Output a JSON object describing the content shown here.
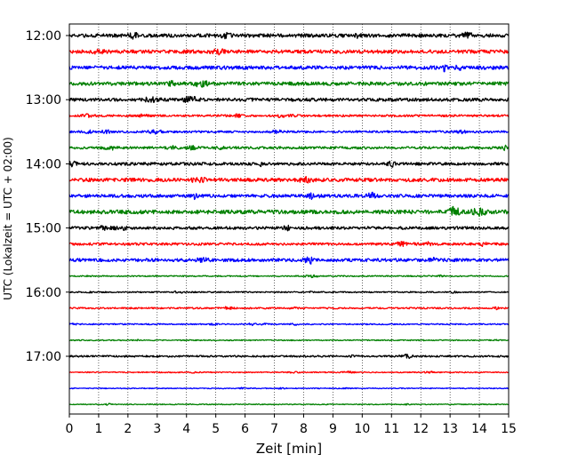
{
  "chart_data": {
    "type": "seismogram",
    "xlabel": "Zeit  [min]",
    "ylabel": "UTC (Lokalzeit = UTC + 02:00)",
    "xlim": [
      0,
      15
    ],
    "x_ticks": [
      0,
      1,
      2,
      3,
      4,
      5,
      6,
      7,
      8,
      9,
      10,
      11,
      12,
      13,
      14,
      15
    ],
    "y_tick_labels": [
      "12:00",
      "13:00",
      "14:00",
      "15:00",
      "16:00",
      "17:00"
    ],
    "trace_interval_minutes": 15,
    "trace_colors": [
      "#000000",
      "#ff0000",
      "#0000ff",
      "#008000"
    ],
    "grid": "vertical dotted lines at each minute",
    "traces": [
      {
        "start": "12:00",
        "color": "#000000",
        "amplitude": 1.0
      },
      {
        "start": "12:15",
        "color": "#ff0000",
        "amplitude": 1.0
      },
      {
        "start": "12:30",
        "color": "#0000ff",
        "amplitude": 1.0
      },
      {
        "start": "12:45",
        "color": "#008000",
        "amplitude": 1.0
      },
      {
        "start": "13:00",
        "color": "#000000",
        "amplitude": 0.9
      },
      {
        "start": "13:15",
        "color": "#ff0000",
        "amplitude": 0.6
      },
      {
        "start": "13:30",
        "color": "#0000ff",
        "amplitude": 0.6
      },
      {
        "start": "13:45",
        "color": "#008000",
        "amplitude": 0.7
      },
      {
        "start": "14:00",
        "color": "#000000",
        "amplitude": 0.8
      },
      {
        "start": "14:15",
        "color": "#ff0000",
        "amplitude": 1.0
      },
      {
        "start": "14:30",
        "color": "#0000ff",
        "amplitude": 0.9
      },
      {
        "start": "14:45",
        "color": "#008000",
        "amplitude": 1.1
      },
      {
        "start": "15:00",
        "color": "#000000",
        "amplitude": 0.8
      },
      {
        "start": "15:15",
        "color": "#ff0000",
        "amplitude": 0.7
      },
      {
        "start": "15:30",
        "color": "#0000ff",
        "amplitude": 0.9
      },
      {
        "start": "15:45",
        "color": "#008000",
        "amplitude": 0.35
      },
      {
        "start": "16:00",
        "color": "#000000",
        "amplitude": 0.35
      },
      {
        "start": "16:15",
        "color": "#ff0000",
        "amplitude": 0.45
      },
      {
        "start": "16:30",
        "color": "#0000ff",
        "amplitude": 0.35
      },
      {
        "start": "16:45",
        "color": "#008000",
        "amplitude": 0.3
      },
      {
        "start": "17:00",
        "color": "#000000",
        "amplitude": 0.5
      },
      {
        "start": "17:15",
        "color": "#ff0000",
        "amplitude": 0.3
      },
      {
        "start": "17:30",
        "color": "#0000ff",
        "amplitude": 0.25
      },
      {
        "start": "17:45",
        "color": "#008000",
        "amplitude": 0.25
      }
    ]
  }
}
